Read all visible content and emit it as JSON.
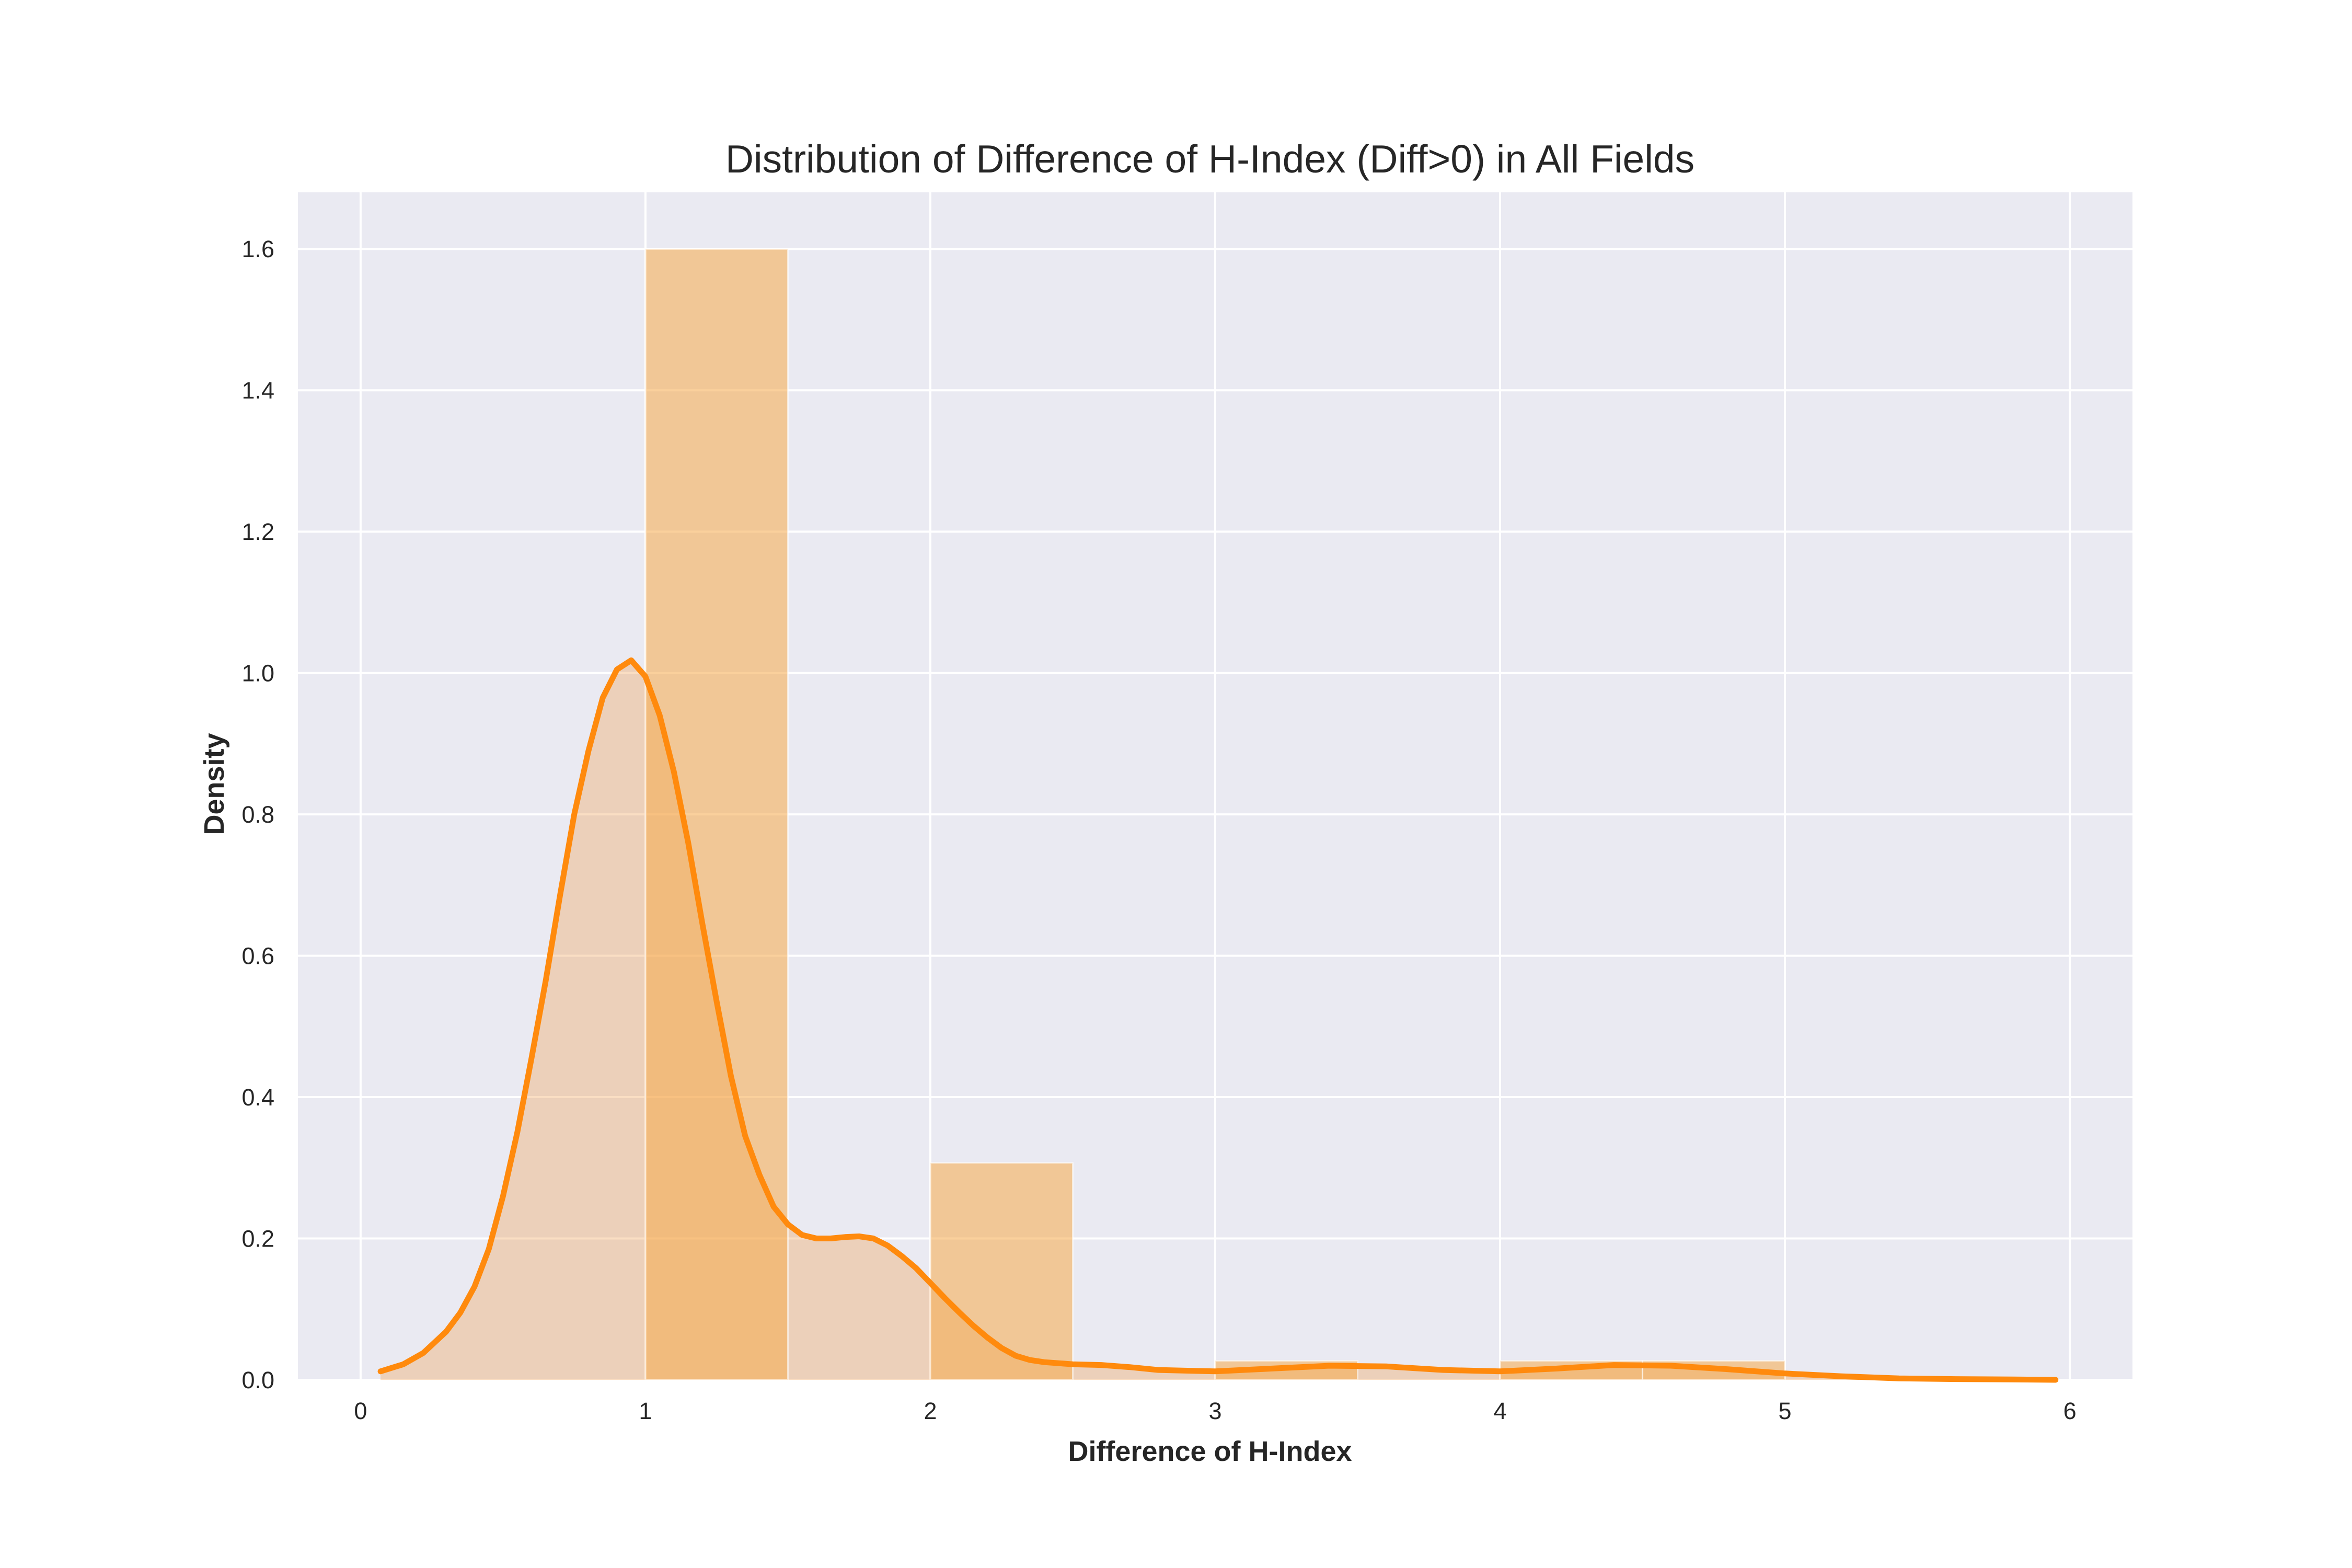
{
  "chart_data": {
    "type": "bar",
    "title": "Distribution of Difference of H-Index (Diff>0) in All Fields",
    "xlabel": "Difference of H-Index",
    "ylabel": "Density",
    "xlim": [
      -0.22,
      6.22
    ],
    "ylim": [
      0,
      1.68
    ],
    "x_ticks": [
      0,
      1,
      2,
      3,
      4,
      5,
      6
    ],
    "y_ticks": [
      0.0,
      0.2,
      0.4,
      0.6,
      0.8,
      1.0,
      1.2,
      1.4,
      1.6
    ],
    "grid": true,
    "colors": {
      "background": "#eaeaf2",
      "grid": "#ffffff",
      "hist_fill": "#f5a94a",
      "hist_opacity": 0.55,
      "kde_line": "#ff8a0d",
      "kde_fill": "#f1a154",
      "kde_fill_opacity": 0.35
    },
    "histogram": {
      "bin_width": 0.5,
      "bins": [
        {
          "x0": 1.0,
          "x1": 1.5,
          "density": 1.6
        },
        {
          "x0": 1.5,
          "x1": 2.0,
          "density": 0.0
        },
        {
          "x0": 2.0,
          "x1": 2.5,
          "density": 0.307
        },
        {
          "x0": 2.5,
          "x1": 3.0,
          "density": 0.0
        },
        {
          "x0": 3.0,
          "x1": 3.5,
          "density": 0.027
        },
        {
          "x0": 3.5,
          "x1": 4.0,
          "density": 0.0
        },
        {
          "x0": 4.0,
          "x1": 4.5,
          "density": 0.027
        },
        {
          "x0": 4.5,
          "x1": 5.0,
          "density": 0.027
        }
      ]
    },
    "kde": {
      "x": [
        0.07,
        0.15,
        0.22,
        0.3,
        0.35,
        0.4,
        0.45,
        0.5,
        0.55,
        0.6,
        0.65,
        0.7,
        0.75,
        0.8,
        0.85,
        0.9,
        0.95,
        1.0,
        1.05,
        1.1,
        1.15,
        1.2,
        1.25,
        1.3,
        1.35,
        1.4,
        1.45,
        1.5,
        1.55,
        1.6,
        1.65,
        1.7,
        1.75,
        1.8,
        1.85,
        1.9,
        1.95,
        2.0,
        2.05,
        2.1,
        2.15,
        2.2,
        2.25,
        2.3,
        2.35,
        2.4,
        2.5,
        2.6,
        2.7,
        2.8,
        3.0,
        3.2,
        3.4,
        3.6,
        3.8,
        4.0,
        4.2,
        4.4,
        4.6,
        4.8,
        5.0,
        5.2,
        5.4,
        5.6,
        5.8,
        5.95
      ],
      "y": [
        0.012,
        0.022,
        0.038,
        0.068,
        0.095,
        0.132,
        0.185,
        0.26,
        0.35,
        0.455,
        0.565,
        0.685,
        0.8,
        0.89,
        0.965,
        1.005,
        1.018,
        0.995,
        0.94,
        0.86,
        0.76,
        0.645,
        0.535,
        0.43,
        0.345,
        0.29,
        0.245,
        0.22,
        0.205,
        0.2,
        0.2,
        0.202,
        0.203,
        0.2,
        0.19,
        0.175,
        0.158,
        0.137,
        0.116,
        0.096,
        0.077,
        0.06,
        0.045,
        0.034,
        0.028,
        0.025,
        0.022,
        0.021,
        0.018,
        0.014,
        0.012,
        0.016,
        0.02,
        0.019,
        0.014,
        0.012,
        0.016,
        0.021,
        0.02,
        0.015,
        0.009,
        0.005,
        0.002,
        0.001,
        0.0005,
        0.0
      ]
    }
  }
}
